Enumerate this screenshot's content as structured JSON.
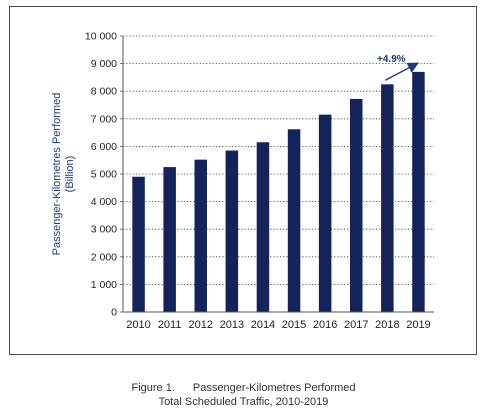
{
  "chart_data": {
    "type": "bar",
    "categories": [
      "2010",
      "2011",
      "2012",
      "2013",
      "2014",
      "2015",
      "2016",
      "2017",
      "2018",
      "2019"
    ],
    "values": [
      4900,
      5250,
      5520,
      5850,
      6150,
      6620,
      7150,
      7720,
      8250,
      8700
    ],
    "ylabel": "Passenger-Kilometres Performed",
    "ylabel_unit": "(Billion)",
    "ylim": [
      0,
      10000
    ],
    "yticks": [
      0,
      1000,
      2000,
      3000,
      4000,
      5000,
      6000,
      7000,
      8000,
      9000,
      10000
    ],
    "ytick_labels": [
      "0",
      "1 000",
      "2 000",
      "3 000",
      "4 000",
      "5 000",
      "6 000",
      "7 000",
      "8 000",
      "9 000",
      "10 000"
    ],
    "grid": "horizontal dotted",
    "bar_color": "#14245a",
    "annotation": "+4.9%",
    "annotation_color": "#1f3a78"
  },
  "caption": {
    "figure_label": "Figure 1.",
    "title": "Passenger-Kilometres Performed",
    "subtitle": "Total Scheduled Traffic, 2010-2019"
  }
}
